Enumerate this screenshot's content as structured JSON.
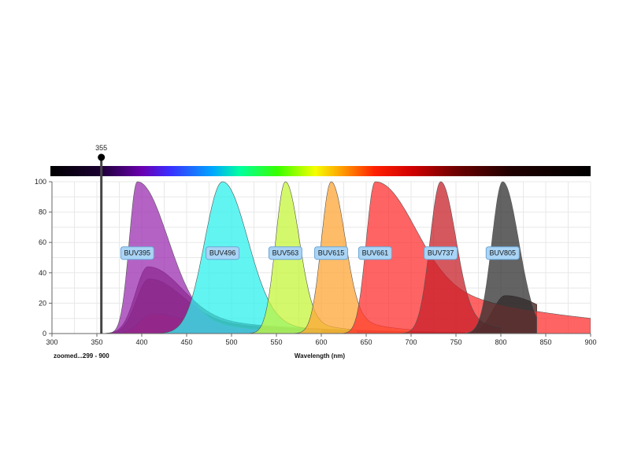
{
  "chart_data": {
    "type": "area",
    "title": "",
    "xlabel": "Wavelength (nm)",
    "ylabel": "",
    "xlim": [
      300,
      900
    ],
    "ylim": [
      0,
      100
    ],
    "x_ticks": [
      300,
      350,
      400,
      450,
      500,
      550,
      600,
      650,
      700,
      750,
      800,
      850,
      900
    ],
    "y_ticks": [
      0,
      20,
      40,
      60,
      80,
      100
    ],
    "grid": true,
    "range_note": "zoomed...299 - 900",
    "laser": {
      "wavelength": 355,
      "label": "355"
    },
    "series": [
      {
        "name": "BUV395",
        "color": "#9b2fb0",
        "emission_peak": 395,
        "width_left": 9,
        "width_right": 32,
        "emission_range": [
          355,
          700
        ],
        "excited_peak": 44,
        "label_y": 53
      },
      {
        "name": "BUV496",
        "color": "#2ef0ec",
        "emission_peak": 490,
        "width_left": 20,
        "width_right": 27,
        "emission_range": [
          415,
          600
        ],
        "label_y": 53
      },
      {
        "name": "BUV563",
        "color": "#c6f53a",
        "emission_peak": 560,
        "width_left": 11,
        "width_right": 15,
        "emission_range": [
          515,
          640
        ],
        "label_y": 53
      },
      {
        "name": "BUV615",
        "color": "#ffa535",
        "emission_peak": 611,
        "width_left": 11,
        "width_right": 15,
        "emission_range": [
          565,
          700
        ],
        "label_y": 53
      },
      {
        "name": "BUV661",
        "color": "#ff3030",
        "emission_peak": 660,
        "width_left": 10,
        "width_right": 40,
        "emission_range": [
          612,
          900
        ],
        "label_y": 53
      },
      {
        "name": "BUV737",
        "color": "#c8202a",
        "emission_peak": 733,
        "width_left": 12,
        "width_right": 16,
        "emission_range": [
          680,
          800
        ],
        "label_y": 53
      },
      {
        "name": "BUV805",
        "color": "#2f2f2f",
        "emission_peak": 802,
        "width_left": 12,
        "width_right": 18,
        "emission_range": [
          750,
          840
        ],
        "label_y": 53
      }
    ],
    "laser_excited_series": [
      {
        "name": "BUV395",
        "peak_x": 407,
        "peak_y": 44,
        "color": "#6a1f3e"
      },
      {
        "name": "BUV496",
        "peak_x": 408,
        "peak_y": 36,
        "color": "#5a1420"
      },
      {
        "name": "BUV661",
        "peak_x": 412,
        "peak_y": 13,
        "color": "#8a1010"
      },
      {
        "name": "BUV805",
        "peak_x": 805,
        "peak_y": 25,
        "color": "#3a1515"
      }
    ]
  }
}
